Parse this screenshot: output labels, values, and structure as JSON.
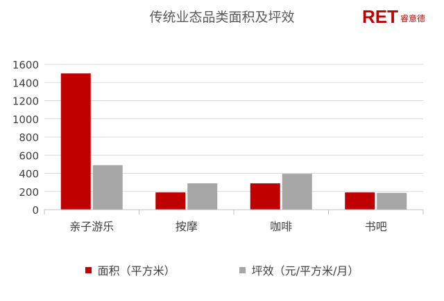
{
  "chart_data": {
    "type": "bar",
    "title": "传统业态品类面积及坪效",
    "categories": [
      "亲子游乐",
      "按摩",
      "咖啡",
      "书吧"
    ],
    "series": [
      {
        "name": "面积（平方米）",
        "values": [
          1500,
          190,
          290,
          190
        ],
        "color": "#c00000"
      },
      {
        "name": "坪效（元/平方米/月）",
        "values": [
          490,
          290,
          395,
          185
        ],
        "color": "#a6a6a6"
      }
    ],
    "yticks": [
      0,
      200,
      400,
      600,
      800,
      1000,
      1200,
      1400,
      1600
    ],
    "ylim": [
      0,
      1600
    ],
    "grid": true,
    "legend_position": "bottom",
    "xlabel": "",
    "ylabel": ""
  },
  "logo": {
    "mark": "RET",
    "sub": "睿意德"
  }
}
